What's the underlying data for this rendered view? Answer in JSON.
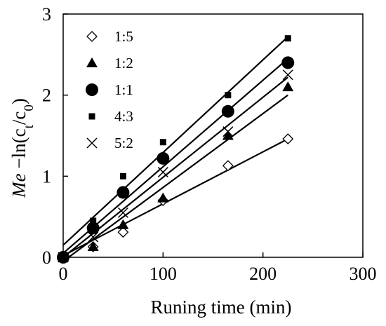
{
  "chart_data": {
    "type": "scatter",
    "title": "",
    "xlabel": "Runing time (min)",
    "ylabel": {
      "italic": "Me",
      "text": " −ln(c",
      "sub1": "t",
      "mid": "/c",
      "sub2": "0",
      "end": ")"
    },
    "xlim": [
      0,
      300
    ],
    "ylim": [
      0,
      3
    ],
    "xticks": [
      0,
      100,
      200,
      300
    ],
    "yticks": [
      0,
      1,
      2,
      3
    ],
    "grid": false,
    "legend_position": "top-left",
    "series": [
      {
        "name": "1:5",
        "marker": "diamond-open",
        "x": [
          0,
          30,
          60,
          100,
          165,
          225
        ],
        "y": [
          0,
          0.13,
          0.31,
          0.7,
          1.13,
          1.46
        ],
        "fit": {
          "x": [
            0,
            225
          ],
          "y": [
            0.02,
            1.46
          ]
        }
      },
      {
        "name": "1:2",
        "marker": "triangle",
        "x": [
          0,
          30,
          60,
          100,
          165,
          225
        ],
        "y": [
          0,
          0.13,
          0.4,
          0.73,
          1.5,
          2.1
        ],
        "fit": {
          "x": [
            0,
            225
          ],
          "y": [
            -0.05,
            2.0
          ]
        }
      },
      {
        "name": "1:1",
        "marker": "circle",
        "x": [
          0,
          30,
          60,
          100,
          165,
          225
        ],
        "y": [
          0,
          0.36,
          0.8,
          1.22,
          1.8,
          2.4
        ],
        "fit": {
          "x": [
            0,
            225
          ],
          "y": [
            0.05,
            2.45
          ]
        }
      },
      {
        "name": "4:3",
        "marker": "square",
        "x": [
          0,
          30,
          60,
          100,
          165,
          225
        ],
        "y": [
          0,
          0.45,
          1.0,
          1.42,
          2.0,
          2.7
        ],
        "fit": {
          "x": [
            0,
            225
          ],
          "y": [
            0.15,
            2.72
          ]
        }
      },
      {
        "name": "5:2",
        "marker": "x",
        "x": [
          0,
          30,
          60,
          100,
          165,
          225
        ],
        "y": [
          0,
          0.25,
          0.55,
          1.05,
          1.55,
          2.25
        ],
        "fit": {
          "x": [
            0,
            225
          ],
          "y": [
            0.0,
            2.22
          ]
        }
      }
    ]
  }
}
